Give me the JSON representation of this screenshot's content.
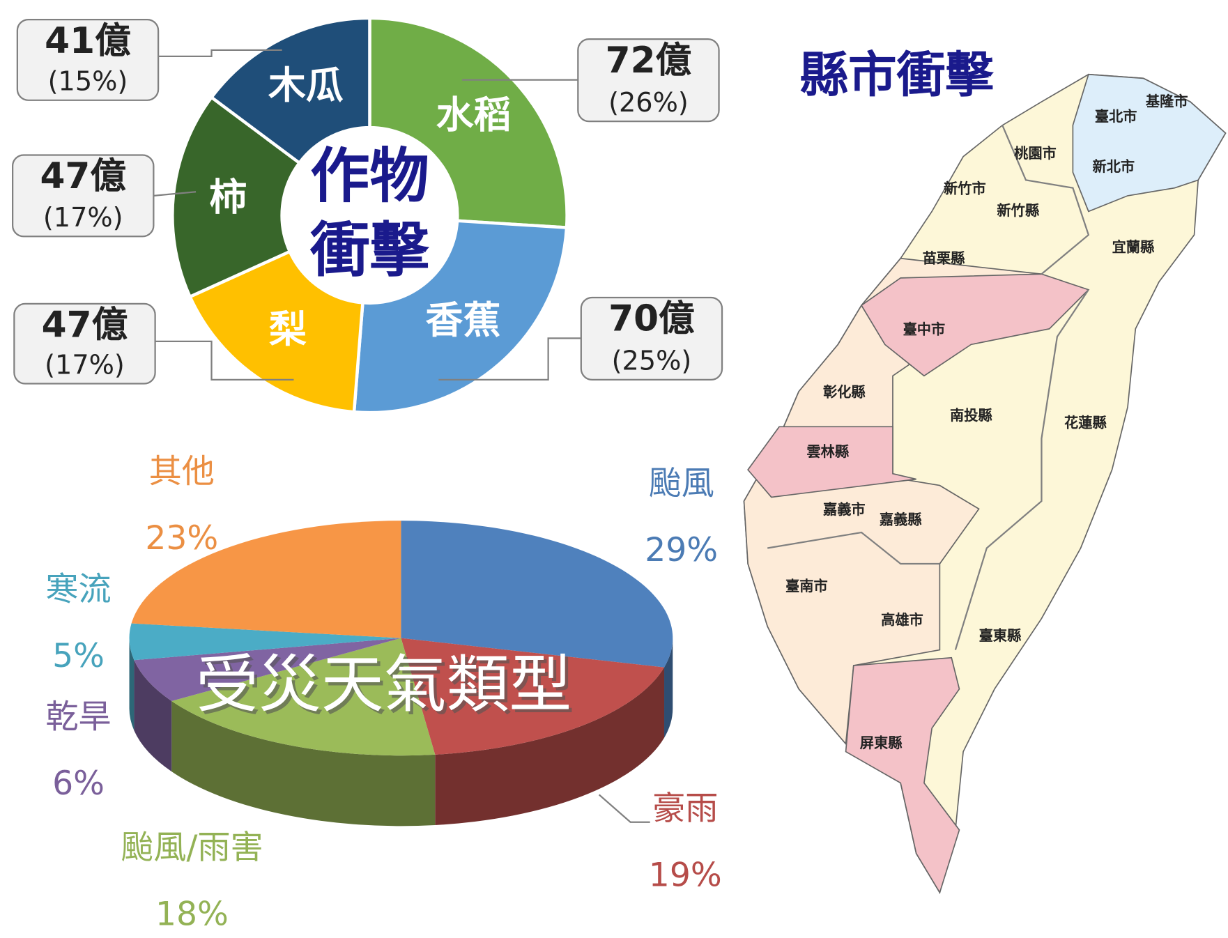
{
  "chart_data": [
    {
      "type": "donut",
      "title_lines": [
        "作物",
        "衝擊"
      ],
      "categories": [
        "水稻",
        "香蕉",
        "梨",
        "柿",
        "木瓜"
      ],
      "values": [
        72,
        70,
        47,
        47,
        41
      ],
      "value_labels": [
        "72億",
        "70億",
        "47億",
        "47億",
        "41億"
      ],
      "percentages": [
        26,
        25,
        17,
        17,
        15
      ],
      "percentage_labels": [
        "(26%)",
        "(25%)",
        "(17%)",
        "(17%)",
        "(15%)"
      ],
      "colors": [
        "#70ad47",
        "#5b9bd5",
        "#ffc000",
        "#38662a",
        "#1f4e79"
      ]
    },
    {
      "type": "pie",
      "title": "受災天氣類型",
      "categories": [
        "颱風",
        "豪雨",
        "颱風/雨害",
        "乾旱",
        "寒流",
        "其他"
      ],
      "values": [
        29,
        19,
        18,
        6,
        5,
        23
      ],
      "value_labels": [
        "29%",
        "19%",
        "18%",
        "6%",
        "5%",
        "23%"
      ],
      "colors": [
        "#4f81bd",
        "#c0504d",
        "#9bbb59",
        "#8064a2",
        "#4bacc6",
        "#f79646"
      ]
    }
  ],
  "map": {
    "title": "縣市衝擊",
    "regions": [
      "基隆市",
      "臺北市",
      "桃園市",
      "新北市",
      "新竹市",
      "新竹縣",
      "宜蘭縣",
      "苗栗縣",
      "臺中市",
      "彰化縣",
      "南投縣",
      "花蓮縣",
      "雲林縣",
      "嘉義市",
      "嘉義縣",
      "臺南市",
      "高雄市",
      "臺東縣",
      "屏東縣"
    ]
  }
}
